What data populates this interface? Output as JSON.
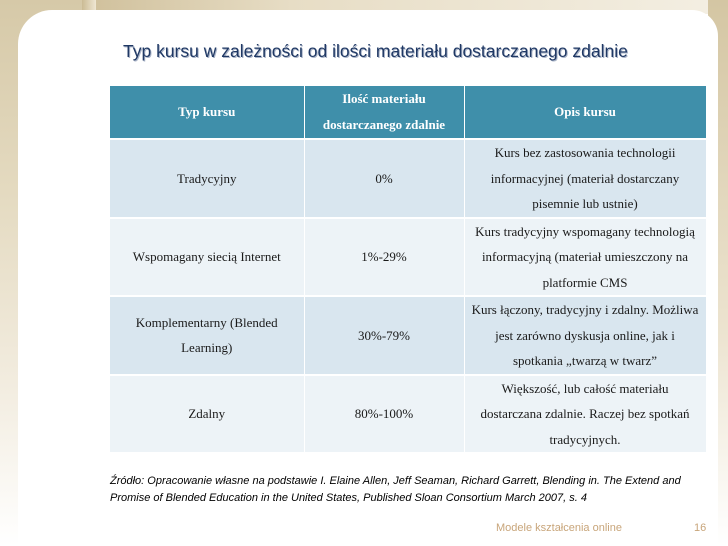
{
  "slide": {
    "title": "Typ kursu w zależności od ilości materiału dostarczanego zdalnie",
    "table": {
      "headers": [
        "Typ kursu",
        "Ilość materiału dostarczanego zdalnie",
        "Opis kursu"
      ],
      "rows": [
        [
          "Tradycyjny",
          "0%",
          "Kurs bez zastosowania technologii informacyjnej (materiał dostarczany pisemnie lub ustnie)"
        ],
        [
          "Wspomagany siecią Internet",
          "1%-29%",
          "Kurs tradycyjny wspomagany technologią informacyjną (materiał umieszczony na platformie CMS"
        ],
        [
          "Komplementarny (Blended Learning)",
          "30%-79%",
          "Kurs łączony, tradycyjny i zdalny. Możliwa jest zarówno dyskusja online, jak i spotkania „twarzą w twarz”"
        ],
        [
          "Zdalny",
          "80%-100%",
          "Większość, lub całość materiału dostarczana zdalnie. Raczej bez spotkań tradycyjnych."
        ]
      ]
    },
    "source": "Źródło: Opracowanie własne na podstawie I. Elaine Allen, Jeff Seaman, Richard Garrett, Blending in. The Extend and Promise of Blended Education in the United States, Published Sloan Consortium March 2007, s. 4",
    "footer_label": "Modele kształcenia online",
    "page_number": "16"
  },
  "colors": {
    "header_bg": "#3f8faa",
    "row_odd_bg": "#d9e6ef",
    "row_even_bg": "#edf3f7",
    "title_color": "#1f3864",
    "footer_color": "#c8a57a"
  }
}
